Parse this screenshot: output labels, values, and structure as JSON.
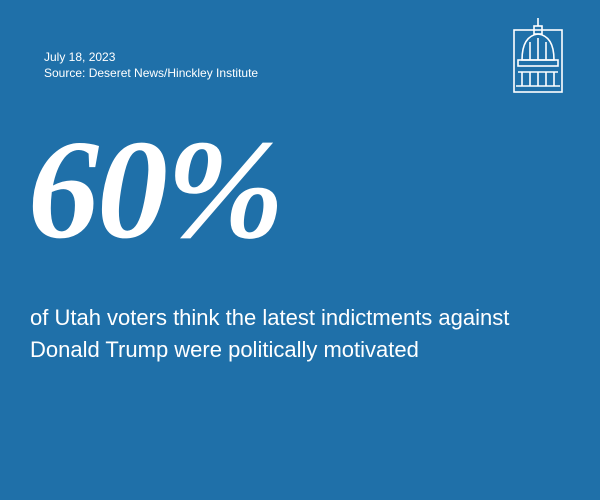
{
  "date": "July 18, 2023",
  "source": "Source: Deseret News/Hinckley Institute",
  "stat": "60%",
  "description": "of Utah voters think the latest indictments against Donald Trump were politically motivated"
}
